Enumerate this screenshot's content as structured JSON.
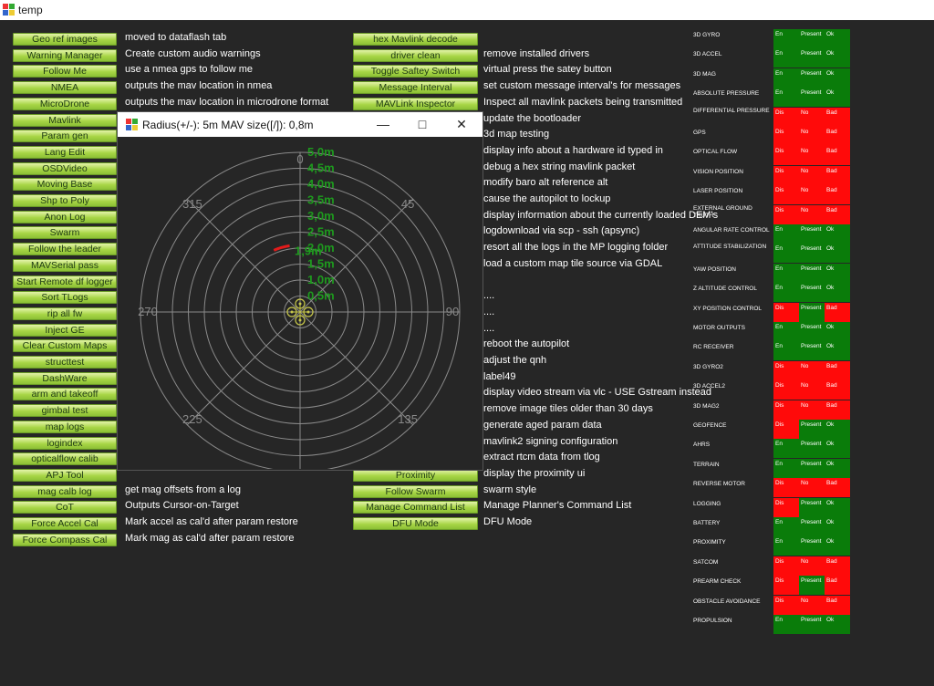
{
  "app": {
    "title": "temp"
  },
  "left_buttons": [
    {
      "label": "Geo ref images",
      "desc": "moved to dataflash tab"
    },
    {
      "label": "Warning Manager",
      "desc": "Create custom audio warnings"
    },
    {
      "label": "Follow Me",
      "desc": "use a nmea gps to follow me"
    },
    {
      "label": "NMEA",
      "desc": "outputs the mav location in nmea"
    },
    {
      "label": "MicroDrone",
      "desc": "outputs the mav location in microdrone format"
    },
    {
      "label": "Mavlink",
      "desc": ""
    },
    {
      "label": "Param gen",
      "desc": ""
    },
    {
      "label": "Lang Edit",
      "desc": ""
    },
    {
      "label": "OSDVideo",
      "desc": ""
    },
    {
      "label": "Moving Base",
      "desc": ""
    },
    {
      "label": "Shp to Poly",
      "desc": ""
    },
    {
      "label": "Anon Log",
      "desc": ""
    },
    {
      "label": "Swarm",
      "desc": ""
    },
    {
      "label": "Follow the leader",
      "desc": ""
    },
    {
      "label": "MAVSerial pass",
      "desc": ""
    },
    {
      "label": "Start Remote df logger",
      "desc": ""
    },
    {
      "label": "Sort TLogs",
      "desc": ""
    },
    {
      "label": "rip all fw",
      "desc": ""
    },
    {
      "label": "Inject GE",
      "desc": ""
    },
    {
      "label": "Clear Custom Maps",
      "desc": ""
    },
    {
      "label": "structtest",
      "desc": ""
    },
    {
      "label": "DashWare",
      "desc": ""
    },
    {
      "label": "arm and takeoff",
      "desc": ""
    },
    {
      "label": "gimbal test",
      "desc": ""
    },
    {
      "label": "map logs",
      "desc": ""
    },
    {
      "label": "logindex",
      "desc": ""
    },
    {
      "label": "opticalflow calib",
      "desc": ""
    },
    {
      "label": "APJ Tool",
      "desc": ""
    },
    {
      "label": "mag calb log",
      "desc": "get mag offsets from a log"
    },
    {
      "label": "CoT",
      "desc": "Outputs Cursor-on-Target"
    },
    {
      "label": "Force Accel Cal",
      "desc": "Mark accel as cal'd after param restore"
    },
    {
      "label": "Force Compass Cal",
      "desc": "Mark mag as cal'd after param restore"
    }
  ],
  "right_buttons": [
    {
      "label": "hex Mavlink decode",
      "desc": ""
    },
    {
      "label": "driver clean",
      "desc": "remove installed drivers"
    },
    {
      "label": "Toggle Saftey Switch",
      "desc": "virtual press the satey button"
    },
    {
      "label": "Message Interval",
      "desc": "set custom message interval's for messages"
    },
    {
      "label": "MAVLink Inspector",
      "desc": "Inspect all mavlink packets being transmitted"
    },
    {
      "label": "",
      "desc": "update the bootloader"
    },
    {
      "label": "",
      "desc": "3d map testing"
    },
    {
      "label": "",
      "desc": "display info about a hardware id typed in"
    },
    {
      "label": "",
      "desc": "debug a hex string mavlink packet"
    },
    {
      "label": "",
      "desc": "modify baro alt reference alt"
    },
    {
      "label": "",
      "desc": "cause the autopilot to lockup"
    },
    {
      "label": "",
      "desc": "display information about the currently loaded DEM's"
    },
    {
      "label": "",
      "desc": "logdownload via scp - ssh (apsync)"
    },
    {
      "label": "",
      "desc": "resort all the logs in the MP logging folder"
    },
    {
      "label": "",
      "desc": "load a custom map tile source via GDAL"
    },
    {
      "label": "",
      "desc": ""
    },
    {
      "label": "",
      "desc": "...."
    },
    {
      "label": "",
      "desc": "...."
    },
    {
      "label": "",
      "desc": "...."
    },
    {
      "label": "",
      "desc": "reboot the autopilot"
    },
    {
      "label": "",
      "desc": "adjust the qnh"
    },
    {
      "label": "",
      "desc": "label49"
    },
    {
      "label": "",
      "desc": "display video stream via vlc - USE Gstream instead"
    },
    {
      "label": "",
      "desc": "remove image tiles older than 30 days"
    },
    {
      "label": "",
      "desc": "generate aged param data"
    },
    {
      "label": "",
      "desc": "mavlink2 signing configuration"
    },
    {
      "label": "",
      "desc": "extract rtcm data from tlog"
    },
    {
      "label": "Proximity",
      "desc": "display the proximity ui"
    },
    {
      "label": "Follow Swarm",
      "desc": "swarm style"
    },
    {
      "label": "Manage Command List",
      "desc": "Manage Planner's Command List"
    },
    {
      "label": "DFU Mode",
      "desc": "DFU Mode"
    }
  ],
  "radar": {
    "title": "Radius(+/-): 5m MAV size([/]): 0,8m",
    "ring_labels": [
      "5,0m",
      "4,5m",
      "4,0m",
      "3,5m",
      "3,0m",
      "2,5m",
      "2,0m",
      "1,5m",
      "1,0m",
      "0,5m"
    ],
    "partial_labels": [
      "1,9m"
    ],
    "bearings": [
      "0",
      "45",
      "90",
      "135",
      "225",
      "270",
      "315"
    ],
    "detection": {
      "start_deg": 337,
      "end_deg": 351,
      "range_m": 2.1
    },
    "colors": {
      "ring": "#8a8a8a",
      "label": "#1e9a1e",
      "bearing": "#8a8a8a",
      "detection": "#e31b1b",
      "mav": "#c8c84a"
    }
  },
  "status": {
    "colors": {
      "ok": "#0a7c0a",
      "bad": "#ff0a0a"
    },
    "rows": [
      {
        "name": "3D GYRO",
        "en": "En",
        "present": "Present",
        "health": "Ok"
      },
      {
        "name": "3D ACCEL",
        "en": "En",
        "present": "Present",
        "health": "Ok"
      },
      {
        "name": "3D MAG",
        "en": "En",
        "present": "Present",
        "health": "Ok"
      },
      {
        "name": "ABSOLUTE PRESSURE",
        "en": "En",
        "present": "Present",
        "health": "Ok"
      },
      {
        "name": "DIFFERENTIAL PRESSURE",
        "en": "Dis",
        "present": "No",
        "health": "Bad"
      },
      {
        "name": "GPS",
        "en": "Dis",
        "present": "No",
        "health": "Bad"
      },
      {
        "name": "OPTICAL FLOW",
        "en": "Dis",
        "present": "No",
        "health": "Bad"
      },
      {
        "name": "VISION POSITION",
        "en": "Dis",
        "present": "No",
        "health": "Bad"
      },
      {
        "name": "LASER POSITION",
        "en": "Dis",
        "present": "No",
        "health": "Bad"
      },
      {
        "name": "EXTERNAL GROUND TRUTH",
        "en": "Dis",
        "present": "No",
        "health": "Bad"
      },
      {
        "name": "ANGULAR RATE CONTROL",
        "en": "En",
        "present": "Present",
        "health": "Ok"
      },
      {
        "name": "ATTITUDE STABILIZATION",
        "en": "En",
        "present": "Present",
        "health": "Ok"
      },
      {
        "name": "YAW POSITION",
        "en": "En",
        "present": "Present",
        "health": "Ok"
      },
      {
        "name": "Z ALTITUDE CONTROL",
        "en": "En",
        "present": "Present",
        "health": "Ok"
      },
      {
        "name": "XY POSITION CONTROL",
        "en": "Dis",
        "present": "Present",
        "health": "Bad"
      },
      {
        "name": "MOTOR OUTPUTS",
        "en": "En",
        "present": "Present",
        "health": "Ok"
      },
      {
        "name": "RC RECEIVER",
        "en": "En",
        "present": "Present",
        "health": "Ok"
      },
      {
        "name": "3D GYRO2",
        "en": "Dis",
        "present": "No",
        "health": "Bad"
      },
      {
        "name": "3D ACCEL2",
        "en": "Dis",
        "present": "No",
        "health": "Bad"
      },
      {
        "name": "3D MAG2",
        "en": "Dis",
        "present": "No",
        "health": "Bad"
      },
      {
        "name": "GEOFENCE",
        "en": "Dis",
        "present": "Present",
        "health": "Ok"
      },
      {
        "name": "AHRS",
        "en": "En",
        "present": "Present",
        "health": "Ok"
      },
      {
        "name": "TERRAIN",
        "en": "En",
        "present": "Present",
        "health": "Ok"
      },
      {
        "name": "REVERSE MOTOR",
        "en": "Dis",
        "present": "No",
        "health": "Bad"
      },
      {
        "name": "LOGGING",
        "en": "Dis",
        "present": "Present",
        "health": "Ok"
      },
      {
        "name": "BATTERY",
        "en": "En",
        "present": "Present",
        "health": "Ok"
      },
      {
        "name": "PROXIMITY",
        "en": "En",
        "present": "Present",
        "health": "Ok"
      },
      {
        "name": "SATCOM",
        "en": "Dis",
        "present": "No",
        "health": "Bad"
      },
      {
        "name": "PREARM CHECK",
        "en": "Dis",
        "present": "Present",
        "health": "Bad"
      },
      {
        "name": "OBSTACLE AVOIDANCE",
        "en": "Dis",
        "present": "No",
        "health": "Bad"
      },
      {
        "name": "PROPULSION",
        "en": "En",
        "present": "Present",
        "health": "Ok"
      }
    ]
  }
}
